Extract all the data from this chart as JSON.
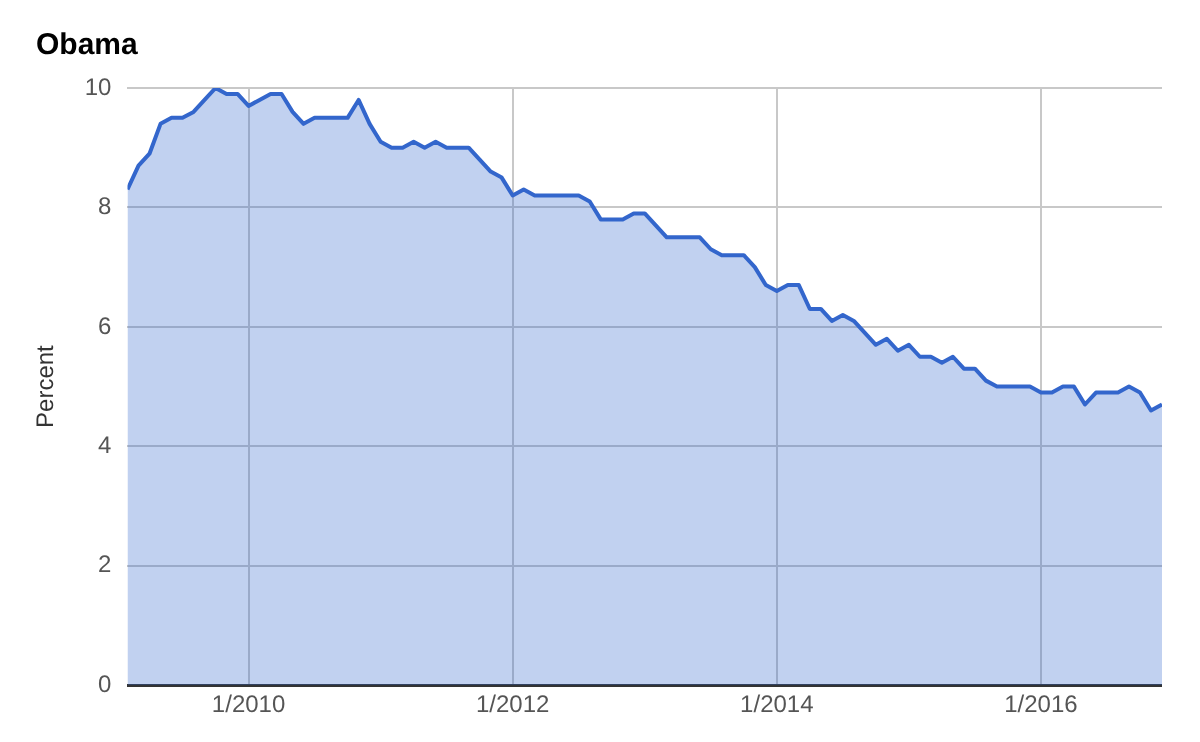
{
  "chart_data": {
    "type": "area",
    "title": "Obama",
    "ylabel": "Percent",
    "x": [
      "2009-02",
      "2009-03",
      "2009-04",
      "2009-05",
      "2009-06",
      "2009-07",
      "2009-08",
      "2009-09",
      "2009-10",
      "2009-11",
      "2009-12",
      "2010-01",
      "2010-02",
      "2010-03",
      "2010-04",
      "2010-05",
      "2010-06",
      "2010-07",
      "2010-08",
      "2010-09",
      "2010-10",
      "2010-11",
      "2010-12",
      "2011-01",
      "2011-02",
      "2011-03",
      "2011-04",
      "2011-05",
      "2011-06",
      "2011-07",
      "2011-08",
      "2011-09",
      "2011-10",
      "2011-11",
      "2011-12",
      "2012-01",
      "2012-02",
      "2012-03",
      "2012-04",
      "2012-05",
      "2012-06",
      "2012-07",
      "2012-08",
      "2012-09",
      "2012-10",
      "2012-11",
      "2012-12",
      "2013-01",
      "2013-02",
      "2013-03",
      "2013-04",
      "2013-05",
      "2013-06",
      "2013-07",
      "2013-08",
      "2013-09",
      "2013-10",
      "2013-11",
      "2013-12",
      "2014-01",
      "2014-02",
      "2014-03",
      "2014-04",
      "2014-05",
      "2014-06",
      "2014-07",
      "2014-08",
      "2014-09",
      "2014-10",
      "2014-11",
      "2014-12",
      "2015-01",
      "2015-02",
      "2015-03",
      "2015-04",
      "2015-05",
      "2015-06",
      "2015-07",
      "2015-08",
      "2015-09",
      "2015-10",
      "2015-11",
      "2015-12",
      "2016-01",
      "2016-02",
      "2016-03",
      "2016-04",
      "2016-05",
      "2016-06",
      "2016-07",
      "2016-08",
      "2016-09",
      "2016-10",
      "2016-11",
      "2016-12"
    ],
    "series": [
      {
        "color": "#3366cc",
        "values": [
          8.3,
          8.7,
          8.9,
          9.4,
          9.5,
          9.5,
          9.6,
          9.8,
          10.0,
          9.9,
          9.9,
          9.7,
          9.8,
          9.9,
          9.9,
          9.6,
          9.4,
          9.5,
          9.5,
          9.5,
          9.5,
          9.8,
          9.4,
          9.1,
          9.0,
          9.0,
          9.1,
          9.0,
          9.1,
          9.0,
          9.0,
          9.0,
          8.8,
          8.6,
          8.5,
          8.2,
          8.3,
          8.2,
          8.2,
          8.2,
          8.2,
          8.2,
          8.1,
          7.8,
          7.8,
          7.8,
          7.9,
          7.9,
          7.7,
          7.5,
          7.5,
          7.5,
          7.5,
          7.3,
          7.2,
          7.2,
          7.2,
          7.0,
          6.7,
          6.6,
          6.7,
          6.7,
          6.3,
          6.3,
          6.1,
          6.2,
          6.1,
          5.9,
          5.7,
          5.8,
          5.6,
          5.7,
          5.5,
          5.5,
          5.4,
          5.5,
          5.3,
          5.3,
          5.1,
          5.0,
          5.0,
          5.0,
          5.0,
          4.9,
          4.9,
          5.0,
          5.0,
          4.7,
          4.9,
          4.9,
          4.9,
          5.0,
          4.9,
          4.6,
          4.7
        ]
      }
    ],
    "xlim": [
      "2009-02",
      "2016-12"
    ],
    "xticks": [
      {
        "value": "2010-01",
        "label": "1/2010"
      },
      {
        "value": "2012-01",
        "label": "1/2012"
      },
      {
        "value": "2014-01",
        "label": "1/2014"
      },
      {
        "value": "2016-01",
        "label": "1/2016"
      }
    ],
    "ylim": [
      0,
      10
    ],
    "yticks": [
      0,
      2,
      4,
      6,
      8,
      10
    ],
    "grid": true
  }
}
